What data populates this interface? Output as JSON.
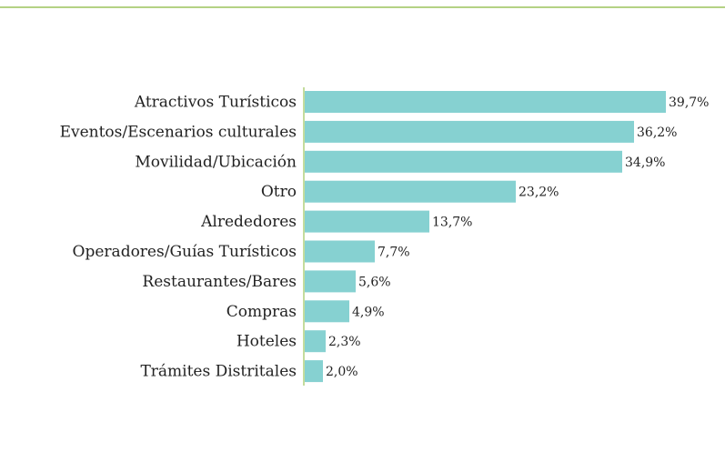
{
  "chart_data": {
    "type": "bar",
    "orientation": "horizontal",
    "categories": [
      "Atractivos Turísticos",
      "Eventos/Escenarios culturales",
      "Movilidad/Ubicación",
      "Otro",
      "Alrededores",
      "Operadores/Guías Turísticos",
      "Restaurantes/Bares",
      "Compras",
      "Hoteles",
      "Trámites Distritales"
    ],
    "values": [
      39.7,
      36.2,
      34.9,
      23.2,
      13.7,
      7.7,
      5.6,
      4.9,
      2.3,
      2.0
    ],
    "value_labels": [
      "39,7%",
      "36,2%",
      "34,9%",
      "23,2%",
      "13,7%",
      "7,7%",
      "5,6%",
      "4,9%",
      "2,3%",
      "2,0%"
    ],
    "color": "#86d1d1"
  }
}
